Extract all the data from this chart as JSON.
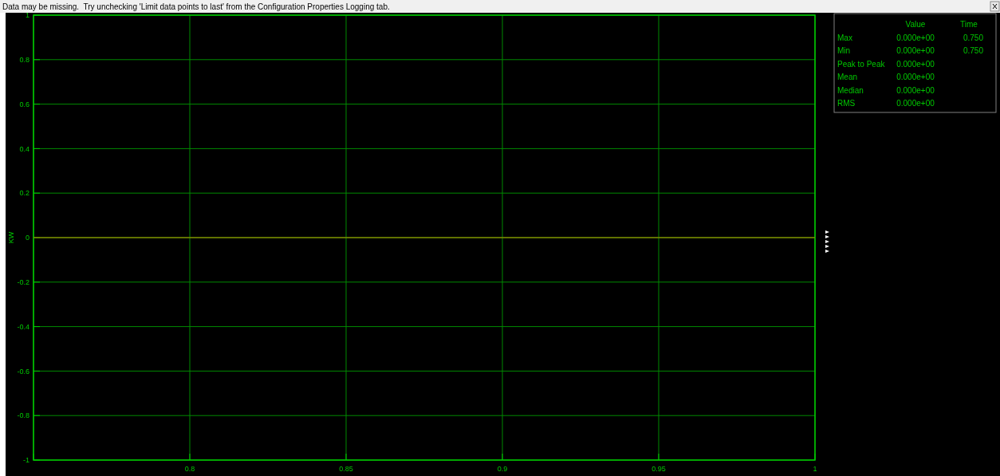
{
  "chart_data": {
    "type": "line",
    "ylabel": "KW",
    "xlim": [
      0.75,
      1
    ],
    "xticks": [
      {
        "value": 0.75,
        "label": null
      },
      0.8,
      0.85,
      0.9,
      0.95,
      1
    ],
    "ylim": [
      -1,
      1
    ],
    "yticks": [
      -1,
      -0.8,
      -0.6,
      -0.4,
      -0.2,
      0,
      0.2,
      0.4,
      0.6,
      0.8,
      1
    ],
    "grid": true,
    "marker": "none",
    "line_style": "solid",
    "series": [
      {
        "color": "#808000",
        "x": [
          0.75,
          1
        ],
        "values": [
          0,
          0
        ]
      }
    ],
    "annotations": [
      "Data may be missing.  Try unchecking 'Limit data points to last' from the Configuration Properties Logging tab.",
      "\tValue\tTime",
      "Max\t0.000e+00\t0.750",
      "Min\t0.000e+00\t0.750",
      "Peak to Peak\t0.000e+00\t",
      "Mean\t0.000e+00\t",
      "Median\t0.000e+00\t",
      "RMS\t0.000e+00\t"
    ]
  }
}
